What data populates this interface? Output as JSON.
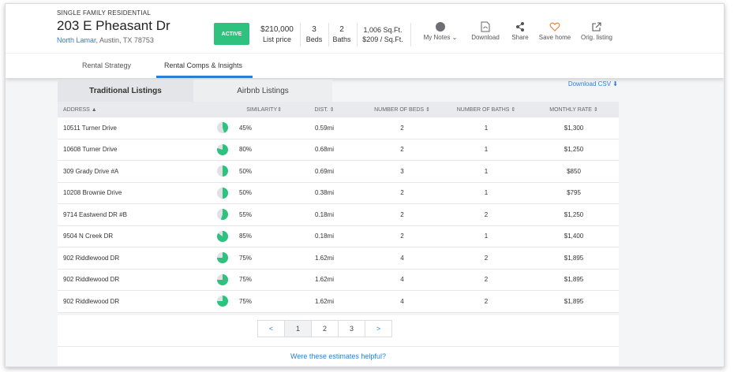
{
  "property": {
    "type_label": "SINGLE FAMILY RESIDENTIAL",
    "address": "203 E Pheasant Dr",
    "neighborhood": "North Lamar,",
    "city_state_zip": " Austin, TX 78753",
    "status": "ACTIVE",
    "price": "$210,000",
    "price_label": "List price",
    "beds": "3",
    "beds_label": "Beds",
    "baths": "2",
    "baths_label": "Baths",
    "sqft": "1,006 Sq.Ft.",
    "price_per_sqft": "$209 / Sq.Ft."
  },
  "actions": {
    "my_notes": "My Notes",
    "download": "Download",
    "share": "Share",
    "save_home": "Save home",
    "orig_listing": "Orig. listing"
  },
  "subnav": {
    "tab1": "Rental Strategy",
    "tab2": "Rental Comps & Insights"
  },
  "listing_tabs": {
    "traditional": "Traditional Listings",
    "airbnb": "Airbnb Listings",
    "download_csv": "Download CSV"
  },
  "table": {
    "headers": {
      "address": "ADDRESS",
      "similarity": "SIMILARITY",
      "dist": "DIST.",
      "beds": "NUMBER OF BEDS",
      "baths": "NUMBER OF BATHS",
      "rate": "MONTHLY RATE"
    },
    "rows": [
      {
        "address": "10511 Turner Drive",
        "similarity": "45%",
        "sim_value": 45,
        "dist": "0.59mi",
        "beds": "2",
        "baths": "1",
        "rate": "$1,300"
      },
      {
        "address": "10608 Turner Drive",
        "similarity": "80%",
        "sim_value": 80,
        "dist": "0.68mi",
        "beds": "2",
        "baths": "1",
        "rate": "$1,250"
      },
      {
        "address": "309 Grady Drive #A",
        "similarity": "50%",
        "sim_value": 50,
        "dist": "0.69mi",
        "beds": "3",
        "baths": "1",
        "rate": "$850"
      },
      {
        "address": "10208 Brownie Drive",
        "similarity": "50%",
        "sim_value": 50,
        "dist": "0.38mi",
        "beds": "2",
        "baths": "1",
        "rate": "$795"
      },
      {
        "address": "9714 Eastwend DR #B",
        "similarity": "55%",
        "sim_value": 55,
        "dist": "0.18mi",
        "beds": "2",
        "baths": "2",
        "rate": "$1,250"
      },
      {
        "address": "9504 N Creek DR",
        "similarity": "85%",
        "sim_value": 85,
        "dist": "0.18mi",
        "beds": "2",
        "baths": "1",
        "rate": "$1,400"
      },
      {
        "address": "902 Riddlewood DR",
        "similarity": "75%",
        "sim_value": 75,
        "dist": "1.62mi",
        "beds": "4",
        "baths": "2",
        "rate": "$1,895"
      },
      {
        "address": "902 Riddlewood DR",
        "similarity": "75%",
        "sim_value": 75,
        "dist": "1.62mi",
        "beds": "4",
        "baths": "2",
        "rate": "$1,895"
      },
      {
        "address": "902 Riddlewood DR",
        "similarity": "75%",
        "sim_value": 75,
        "dist": "1.62mi",
        "beds": "4",
        "baths": "2",
        "rate": "$1,895"
      }
    ]
  },
  "pagination": {
    "prev": "<",
    "pages": [
      "1",
      "2",
      "3"
    ],
    "next": ">"
  },
  "feedback": "Were these estimates helpful?",
  "colors": {
    "accent": "#2a7fd4",
    "active_badge": "#2ec27e",
    "pie_fill": "#2ec27e",
    "pie_track": "#dfe1e4"
  }
}
